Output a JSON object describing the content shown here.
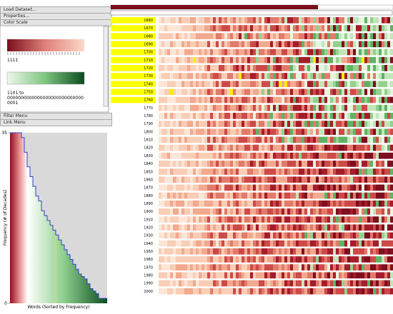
{
  "menus_top": [
    "Load Dataset...",
    "Properties...",
    "Color Scale"
  ],
  "menus_bottom": [
    "Filter Menu",
    "Link Menu"
  ],
  "color_scale": {
    "red_label": "1111",
    "green_label_lines": [
      "1101 to",
      "0000000000000000000000000000",
      "0001"
    ]
  },
  "chart_data": {
    "type": "area",
    "xlabel": "Words (Sorted by Frequency)",
    "ylabel": "Frequency (# of Decades)",
    "ylim": [
      0,
      35
    ],
    "yticks": [
      0,
      35
    ],
    "values": [
      35,
      35,
      35,
      35,
      34,
      31,
      28,
      26,
      24,
      22,
      21,
      19,
      18,
      17,
      16,
      15,
      14,
      13,
      12,
      11,
      10,
      9,
      8,
      7,
      6,
      5.5,
      5,
      4,
      3,
      2.5,
      2,
      1,
      1,
      1
    ]
  },
  "decades": [
    {
      "label": "1660",
      "highlighted": true
    },
    {
      "label": "1670",
      "highlighted": true
    },
    {
      "label": "1680",
      "highlighted": true
    },
    {
      "label": "1690",
      "highlighted": true
    },
    {
      "label": "1700",
      "highlighted": true
    },
    {
      "label": "1710",
      "highlighted": true
    },
    {
      "label": "1720",
      "highlighted": true
    },
    {
      "label": "1730",
      "highlighted": true
    },
    {
      "label": "1740",
      "highlighted": true
    },
    {
      "label": "1750",
      "highlighted": true
    },
    {
      "label": "1760",
      "highlighted": true
    },
    {
      "label": "1770",
      "highlighted": false
    },
    {
      "label": "1780",
      "highlighted": false
    },
    {
      "label": "1790",
      "highlighted": false
    },
    {
      "label": "1800",
      "highlighted": false
    },
    {
      "label": "1810",
      "highlighted": false
    },
    {
      "label": "1820",
      "highlighted": false
    },
    {
      "label": "1830",
      "highlighted": false
    },
    {
      "label": "1840",
      "highlighted": false
    },
    {
      "label": "1850",
      "highlighted": false
    },
    {
      "label": "1860",
      "highlighted": false
    },
    {
      "label": "1870",
      "highlighted": false
    },
    {
      "label": "1880",
      "highlighted": false
    },
    {
      "label": "1890",
      "highlighted": false
    },
    {
      "label": "1900",
      "highlighted": false
    },
    {
      "label": "1910",
      "highlighted": false
    },
    {
      "label": "1920",
      "highlighted": false
    },
    {
      "label": "1930",
      "highlighted": false
    },
    {
      "label": "1940",
      "highlighted": false
    },
    {
      "label": "1950",
      "highlighted": false
    },
    {
      "label": "1960",
      "highlighted": false
    },
    {
      "label": "1970",
      "highlighted": false
    },
    {
      "label": "1980",
      "highlighted": false
    },
    {
      "label": "1990",
      "highlighted": false
    },
    {
      "label": "2000",
      "highlighted": false
    }
  ]
}
